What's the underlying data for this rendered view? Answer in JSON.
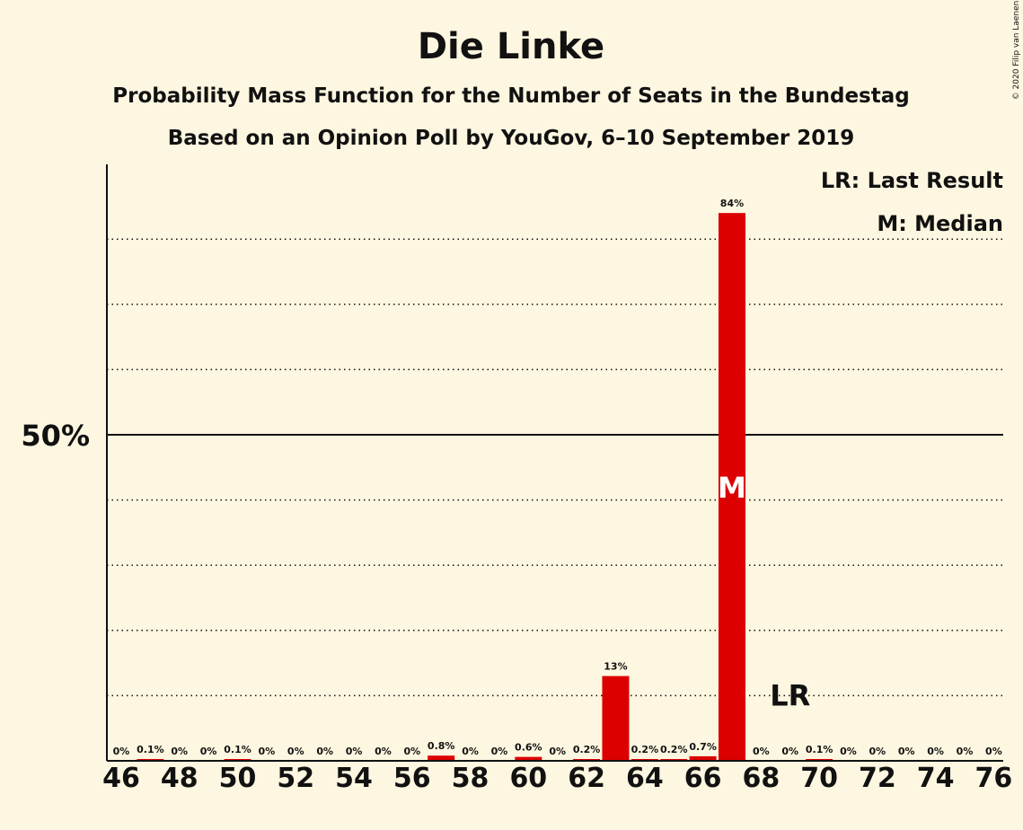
{
  "title": "Die Linke",
  "subtitle_1": "Probability Mass Function for the Number of Seats in the Bundestag",
  "subtitle_2": "Based on an Opinion Poll by YouGov, 6–10 September 2019",
  "legend": {
    "last_result": "LR: Last Result",
    "median": "M: Median"
  },
  "copyright": "© 2020 Filip van Laenen",
  "colors": {
    "background": "#fdf6e0",
    "bar": "#dd0000",
    "axis": "#111111"
  },
  "chart_data": {
    "type": "bar",
    "title": "Die Linke",
    "xlabel": "",
    "ylabel": "",
    "ylim": [
      0,
      90
    ],
    "y_ticks": [
      {
        "value": 50,
        "label": "50%"
      }
    ],
    "y_gridlines": [
      10,
      20,
      30,
      40,
      60,
      70,
      80
    ],
    "x_ticks": [
      46,
      48,
      50,
      52,
      54,
      56,
      58,
      60,
      62,
      64,
      66,
      68,
      70,
      72,
      74,
      76
    ],
    "categories": [
      46,
      47,
      48,
      49,
      50,
      51,
      52,
      53,
      54,
      55,
      56,
      57,
      58,
      59,
      60,
      61,
      62,
      63,
      64,
      65,
      66,
      67,
      68,
      69,
      70,
      71,
      72,
      73,
      74,
      75,
      76
    ],
    "values": [
      0,
      0.1,
      0,
      0,
      0.1,
      0,
      0,
      0,
      0,
      0,
      0,
      0.8,
      0,
      0,
      0.6,
      0,
      0.2,
      13,
      0.2,
      0.2,
      0.7,
      84,
      0,
      0,
      0.1,
      0,
      0,
      0,
      0,
      0,
      0
    ],
    "value_labels": [
      "0%",
      "0.1%",
      "0%",
      "0%",
      "0.1%",
      "0%",
      "0%",
      "0%",
      "0%",
      "0%",
      "0%",
      "0.8%",
      "0%",
      "0%",
      "0.6%",
      "0%",
      "0.2%",
      "13%",
      "0.2%",
      "0.2%",
      "0.7%",
      "84%",
      "0%",
      "0%",
      "0.1%",
      "0%",
      "0%",
      "0%",
      "0%",
      "0%",
      "0%"
    ],
    "median": {
      "seat": 67,
      "label": "M"
    },
    "last_result": {
      "seat": 69,
      "label": "LR"
    },
    "grid": true,
    "legend_position": "top-right"
  }
}
